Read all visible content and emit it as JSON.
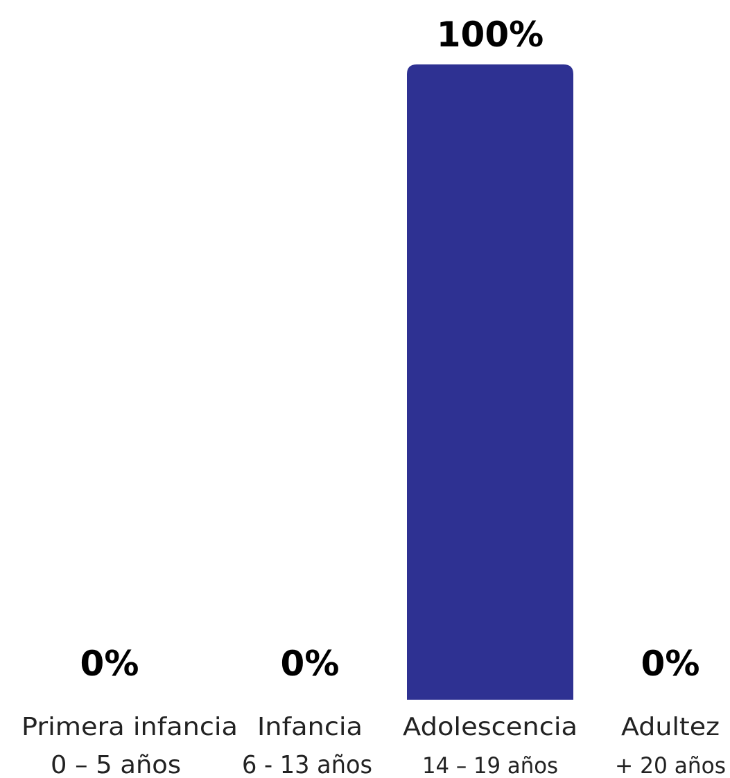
{
  "chart_data": {
    "type": "bar",
    "categories": [
      "Primera infancia",
      "Infancia",
      "Adolescencia",
      "Adultez"
    ],
    "ranges": [
      "0 – 5 años",
      "6 - 13 años",
      "14 – 19 años",
      "+ 20 años"
    ],
    "values": [
      0,
      0,
      100,
      0
    ],
    "value_labels": [
      "0%",
      "0%",
      "100%",
      "0%"
    ],
    "ylim": [
      0,
      100
    ],
    "bar_color": "#2E3192",
    "grid": false,
    "legend": "none"
  }
}
